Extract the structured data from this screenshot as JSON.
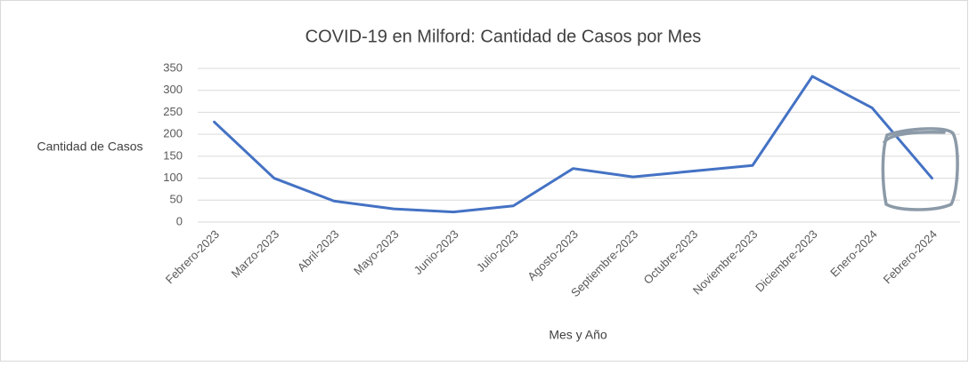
{
  "chart_data": {
    "type": "line",
    "title": "COVID-19 en Milford: Cantidad de Casos por Mes",
    "x_label": "Mes y Año",
    "y_label": "Cantidad de Casos",
    "categories": [
      "Febrero-2023",
      "Marzo-2023",
      "Abril-2023",
      "Mayo-2023",
      "Junio-2023",
      "Julio-2023",
      "Agosto-2023",
      "Septiembre-2023",
      "Octubre-2023",
      "Noviembre-2023",
      "Diciembre-2023",
      "Enero-2024",
      "Febrero-2024"
    ],
    "values": [
      228,
      100,
      48,
      30,
      23,
      37,
      122,
      103,
      116,
      129,
      332,
      260,
      100
    ],
    "color": "#4472c4",
    "ylim": [
      0,
      350
    ],
    "yticks": [
      0,
      50,
      100,
      150,
      200,
      250,
      300,
      350
    ],
    "grid": true
  }
}
